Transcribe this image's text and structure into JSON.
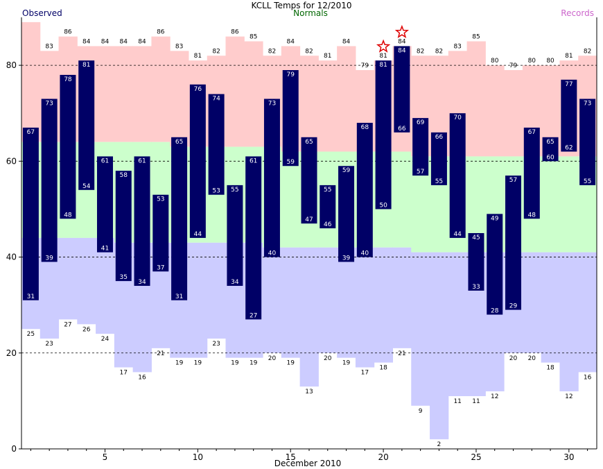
{
  "chart_data": {
    "type": "bar",
    "title": "KCLL Temps for 12/2010",
    "xlabel": "December 2010",
    "ylabel": "",
    "legend": {
      "observed": "Observed",
      "normals": "Normals",
      "records": "Records",
      "placement": "top"
    },
    "colors": {
      "observed": "#000066",
      "normals_text": "#006600",
      "records_text": "#cc66cc",
      "record_high_band": "#ffcccc",
      "normal_band": "#ccffcc",
      "record_low_band": "#ccccff",
      "star": "#dd0000"
    },
    "xlim": [
      0.5,
      31.5
    ],
    "ylim": [
      0,
      90
    ],
    "yticks": [
      0,
      20,
      40,
      60,
      80
    ],
    "xticks": [
      5,
      10,
      15,
      20,
      25,
      30
    ],
    "grid": "dashed horizontal at y ticks",
    "days": [
      1,
      2,
      3,
      4,
      5,
      6,
      7,
      8,
      9,
      10,
      11,
      12,
      13,
      14,
      15,
      16,
      17,
      18,
      19,
      20,
      21,
      22,
      23,
      24,
      25,
      26,
      27,
      28,
      29,
      30,
      31
    ],
    "observed_high": [
      67,
      73,
      78,
      81,
      61,
      58,
      61,
      53,
      65,
      76,
      74,
      55,
      61,
      73,
      79,
      65,
      55,
      59,
      68,
      81,
      84,
      69,
      66,
      70,
      45,
      49,
      57,
      67,
      65,
      77,
      73
    ],
    "observed_low": [
      31,
      39,
      48,
      54,
      41,
      35,
      34,
      37,
      31,
      44,
      53,
      34,
      27,
      40,
      59,
      47,
      46,
      39,
      40,
      50,
      66,
      57,
      55,
      44,
      33,
      28,
      29,
      48,
      60,
      62,
      55
    ],
    "normal_high": [
      64,
      64,
      64,
      64,
      64,
      64,
      64,
      64,
      63,
      63,
      63,
      63,
      63,
      63,
      62,
      62,
      62,
      62,
      62,
      62,
      62,
      61,
      61,
      61,
      61,
      61,
      61,
      61,
      61,
      61,
      61
    ],
    "normal_low": [
      44,
      44,
      44,
      44,
      44,
      43,
      43,
      43,
      43,
      43,
      43,
      43,
      43,
      42,
      42,
      42,
      42,
      42,
      42,
      42,
      42,
      41,
      41,
      41,
      41,
      41,
      41,
      41,
      41,
      41,
      41
    ],
    "record_high": [
      89,
      83,
      86,
      84,
      84,
      84,
      84,
      86,
      83,
      81,
      82,
      86,
      85,
      82,
      84,
      82,
      81,
      84,
      79,
      81,
      84,
      82,
      82,
      83,
      85,
      80,
      79,
      80,
      80,
      81,
      82
    ],
    "record_low": [
      25,
      23,
      27,
      26,
      24,
      17,
      16,
      21,
      19,
      19,
      23,
      19,
      19,
      20,
      19,
      13,
      20,
      19,
      17,
      18,
      21,
      9,
      2,
      11,
      11,
      12,
      20,
      20,
      18,
      12,
      16
    ],
    "record_high_labels": [
      "",
      "83",
      "86",
      "84",
      "84",
      "84",
      "84",
      "86",
      "83",
      "81",
      "82",
      "86",
      "85",
      "82",
      "84",
      "82",
      "81",
      "84",
      "79",
      "81",
      "84",
      "82",
      "82",
      "83",
      "85",
      "80",
      "79",
      "80",
      "80",
      "81",
      "82"
    ],
    "new_record_high_days": [
      20,
      21
    ]
  }
}
